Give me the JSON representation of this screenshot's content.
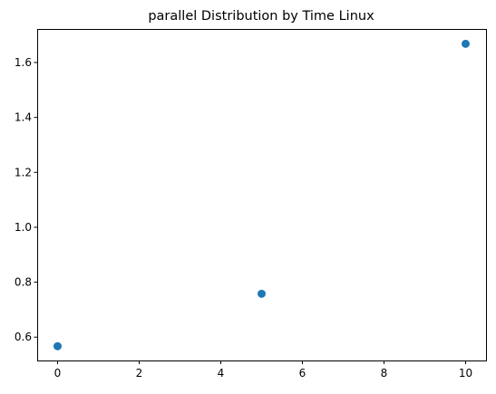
{
  "chart_data": {
    "type": "scatter",
    "title": "parallel Distribution by Time Linux",
    "xlabel": "",
    "ylabel": "",
    "xlim": [
      -0.5,
      10.5
    ],
    "ylim": [
      0.515,
      1.722
    ],
    "x_ticks": [
      {
        "value": 0,
        "label": "0"
      },
      {
        "value": 2,
        "label": "2"
      },
      {
        "value": 4,
        "label": "4"
      },
      {
        "value": 6,
        "label": "6"
      },
      {
        "value": 8,
        "label": "8"
      },
      {
        "value": 10,
        "label": "10"
      }
    ],
    "y_ticks": [
      {
        "value": 0.6,
        "label": "0.6"
      },
      {
        "value": 0.8,
        "label": "0.8"
      },
      {
        "value": 1.0,
        "label": "1.0"
      },
      {
        "value": 1.2,
        "label": "1.2"
      },
      {
        "value": 1.4,
        "label": "1.4"
      },
      {
        "value": 1.6,
        "label": "1.6"
      }
    ],
    "grid": false,
    "legend": "none",
    "marker_color": "#1f77b4",
    "points": [
      {
        "x": 0,
        "y": 0.567
      },
      {
        "x": 5,
        "y": 0.758
      },
      {
        "x": 10,
        "y": 1.668
      }
    ]
  }
}
